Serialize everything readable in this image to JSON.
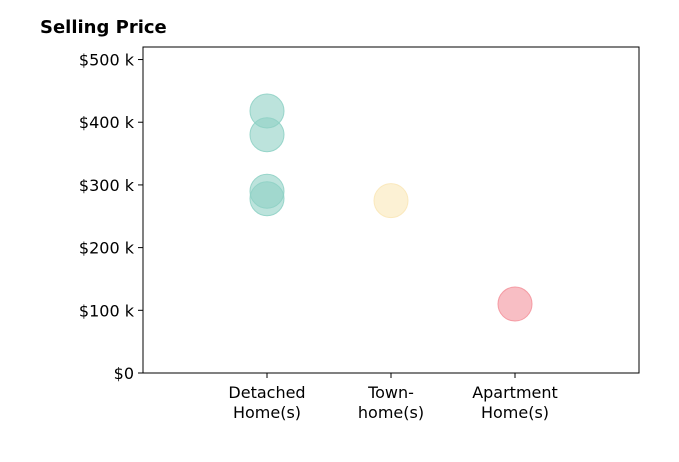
{
  "chart_data": {
    "type": "scatter",
    "title": "Selling Price",
    "xlabel": "",
    "ylabel": "",
    "categories": [
      [
        "Detached",
        "Home(s)"
      ],
      [
        "Town-",
        "home(s)"
      ],
      [
        "Apartment",
        "Home(s)"
      ]
    ],
    "xlim": [
      0,
      4
    ],
    "ylim": [
      0,
      520000
    ],
    "y_ticks": [
      0,
      100000,
      200000,
      300000,
      400000,
      500000
    ],
    "y_tick_labels": [
      "$0",
      "$100 k",
      "$200 k",
      "$300 k",
      "$400 k",
      "$500 k"
    ],
    "grid": false,
    "legend": "none",
    "points": [
      {
        "category_index": 0,
        "value": 418000,
        "color": "#8fd1c5"
      },
      {
        "category_index": 0,
        "value": 380000,
        "color": "#8fd1c5"
      },
      {
        "category_index": 0,
        "value": 290000,
        "color": "#8fd1c5"
      },
      {
        "category_index": 0,
        "value": 278000,
        "color": "#8fd1c5"
      },
      {
        "category_index": 1,
        "value": 275000,
        "color": "#fae7b8"
      },
      {
        "category_index": 2,
        "value": 110000,
        "color": "#f4939c"
      }
    ]
  }
}
